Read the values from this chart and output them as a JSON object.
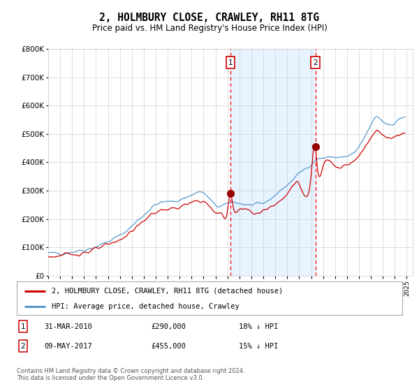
{
  "title": "2, HOLMBURY CLOSE, CRAWLEY, RH11 8TG",
  "subtitle": "Price paid vs. HM Land Registry's House Price Index (HPI)",
  "ylim": [
    0,
    800000
  ],
  "yticks": [
    0,
    100000,
    200000,
    300000,
    400000,
    500000,
    600000,
    700000,
    800000
  ],
  "ytick_labels": [
    "£0",
    "£100K",
    "£200K",
    "£300K",
    "£400K",
    "£500K",
    "£600K",
    "£700K",
    "£800K"
  ],
  "xlim_start": 1995.0,
  "xlim_end": 2025.5,
  "sale1_x": 2010.247,
  "sale1_y": 290000,
  "sale2_x": 2017.356,
  "sale2_y": 455000,
  "line_color_property": "#cc0000",
  "line_color_hpi": "#5599cc",
  "fill_color_between": "#ddeeff",
  "legend_label_property": "2, HOLMBURY CLOSE, CRAWLEY, RH11 8TG (detached house)",
  "legend_label_hpi": "HPI: Average price, detached house, Crawley",
  "sale1_date": "31-MAR-2010",
  "sale1_price": "£290,000",
  "sale1_hpi": "18% ↓ HPI",
  "sale2_date": "09-MAY-2017",
  "sale2_price": "£455,000",
  "sale2_hpi": "15% ↓ HPI",
  "footer_text": "Contains HM Land Registry data © Crown copyright and database right 2024.\nThis data is licensed under the Open Government Licence v3.0."
}
